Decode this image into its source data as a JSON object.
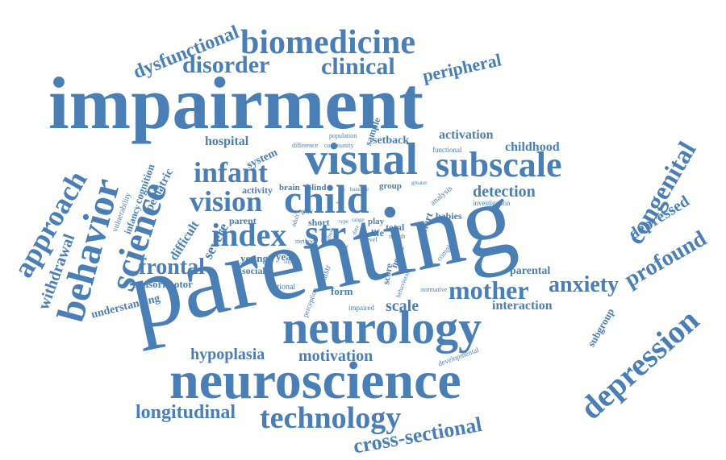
{
  "word_cloud": {
    "color": "#4a7fb5",
    "words": [
      "impairment",
      "parenting",
      "neuroscience",
      "neurology",
      "biomedicine",
      "visual",
      "subscale",
      "child",
      "index",
      "str",
      "infant",
      "vision",
      "science",
      "behavior",
      "approach",
      "withdrawal",
      "congenital",
      "depression",
      "profound",
      "depressed",
      "mother",
      "anxiety",
      "frontal",
      "technology",
      "longitudinal",
      "cross-sectional",
      "motivation",
      "hypoplasia",
      "disorder",
      "clinical",
      "dysfunctional",
      "peripheral",
      "hospital",
      "setback",
      "activation",
      "childhood",
      "detection",
      "parent",
      "young",
      "year",
      "social",
      "sensorimotor",
      "understanding",
      "scale",
      "interaction",
      "subgroup",
      "form",
      "national",
      "difficult",
      "severe",
      "pediatric",
      "cognition",
      "vulnerability",
      "infancy",
      "system",
      "brain",
      "blind",
      "group",
      "babies",
      "investigation",
      "cohort",
      "score",
      "nerve",
      "parental",
      "impaired",
      "behavioral",
      "normative",
      "developmental",
      "functional",
      "difference",
      "community",
      "population",
      "sample",
      "activity",
      "optic",
      "adult",
      "short",
      "play",
      "total",
      "life",
      "month",
      "level",
      "risk",
      "distr",
      "perception",
      "method",
      "support",
      "complex",
      "analysis",
      "greater",
      "data",
      "range",
      "baseline",
      "type",
      "beyond",
      "sighted"
    ]
  }
}
